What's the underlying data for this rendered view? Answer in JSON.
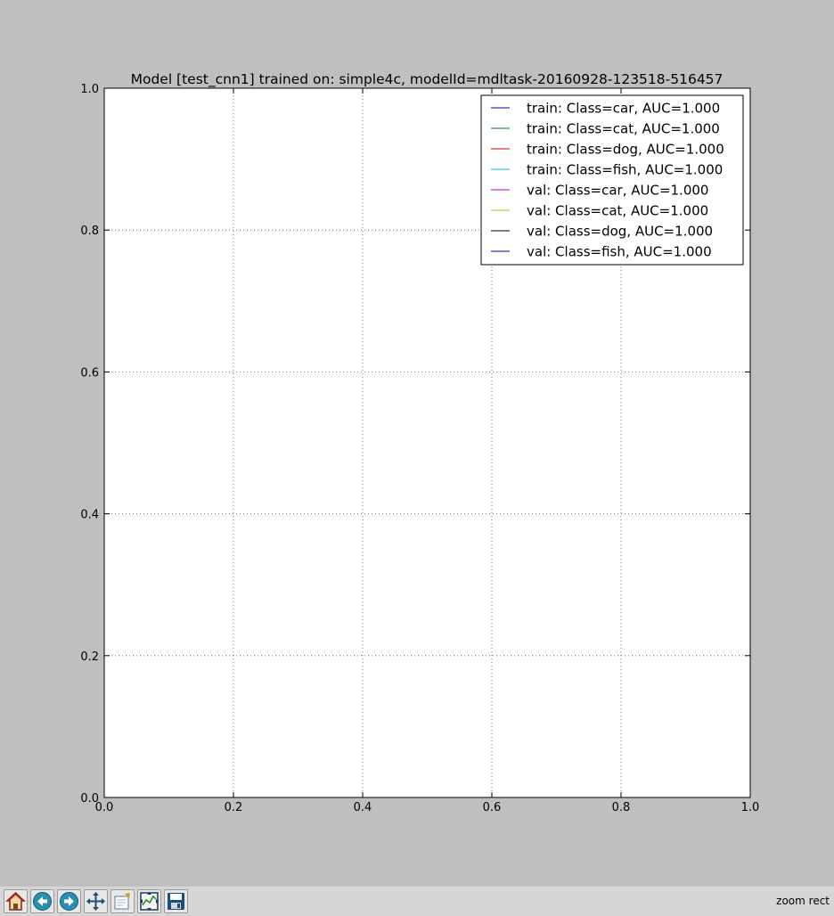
{
  "chart_data": {
    "type": "line",
    "title": "Model [test_cnn1] trained on: simple4c, modelId=mdltask-20160928-123518-516457",
    "xlabel": "",
    "ylabel": "",
    "xlim": [
      0.0,
      1.0
    ],
    "ylim": [
      0.0,
      1.0
    ],
    "x_ticks": [
      "0.0",
      "0.2",
      "0.4",
      "0.6",
      "0.8",
      "1.0"
    ],
    "y_ticks": [
      "0.0",
      "0.2",
      "0.4",
      "0.6",
      "0.8",
      "1.0"
    ],
    "grid": true,
    "legend_position": "top-right",
    "series": [
      {
        "name": "train: Class=car, AUC=1.000",
        "color": "#0000bf",
        "x": [],
        "y": []
      },
      {
        "name": "train: Class=cat, AUC=1.000",
        "color": "#008000",
        "x": [],
        "y": []
      },
      {
        "name": "train: Class=dog, AUC=1.000",
        "color": "#e00000",
        "x": [],
        "y": []
      },
      {
        "name": "train: Class=fish, AUC=1.000",
        "color": "#00bfbf",
        "x": [],
        "y": []
      },
      {
        "name": "val: Class=car, AUC=1.000",
        "color": "#bf00bf",
        "x": [],
        "y": []
      },
      {
        "name": "val: Class=cat, AUC=1.000",
        "color": "#bfbf00",
        "x": [],
        "y": []
      },
      {
        "name": "val: Class=dog, AUC=1.000",
        "color": "#000000",
        "x": [],
        "y": []
      },
      {
        "name": "val: Class=fish, AUC=1.000",
        "color": "#0000bf",
        "x": [],
        "y": []
      }
    ]
  },
  "toolbar": {
    "buttons": [
      {
        "name": "home-icon"
      },
      {
        "name": "back-arrow-icon"
      },
      {
        "name": "forward-arrow-icon"
      },
      {
        "name": "pan-icon"
      },
      {
        "name": "zoom-icon"
      },
      {
        "name": "subplots-icon"
      },
      {
        "name": "save-icon"
      }
    ],
    "status": "zoom rect"
  }
}
